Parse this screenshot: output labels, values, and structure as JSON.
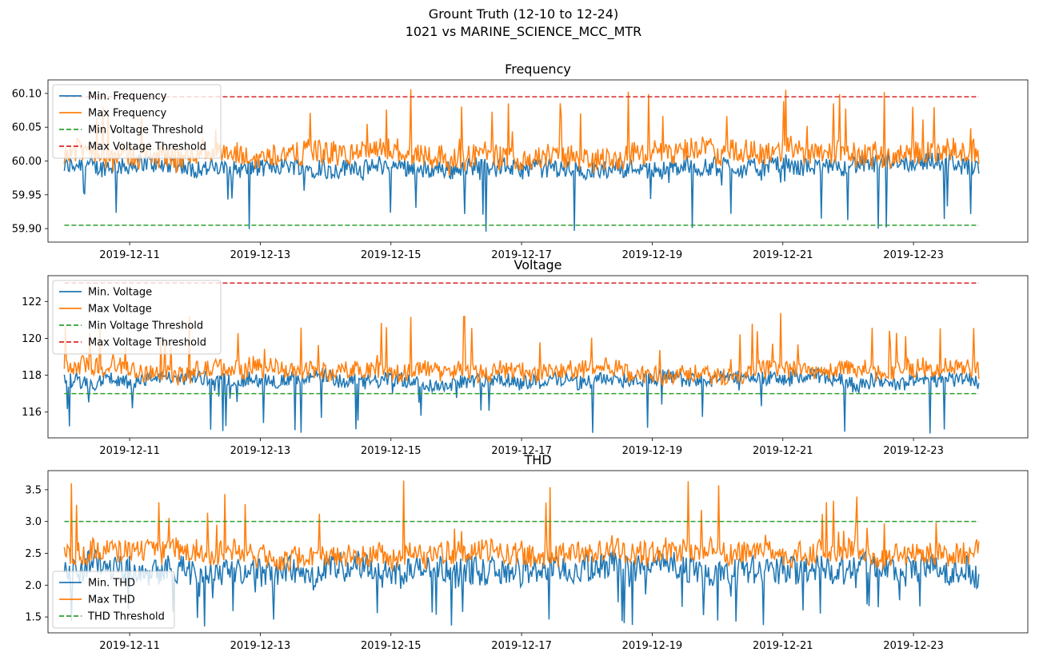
{
  "figure": {
    "suptitle_line1": "Grount Truth (12-10 to 12-24)",
    "suptitle_line2": "1021 vs MARINE_SCIENCE_MCC_MTR"
  },
  "colors": {
    "blue": "#1f77b4",
    "orange": "#ff7f0e",
    "green": "#2ca02c",
    "red": "#d62728"
  },
  "chart_data": [
    {
      "type": "line",
      "title": "Frequency",
      "xlabel": "",
      "ylabel": "",
      "x_range": [
        "2019-12-10",
        "2019-12-24"
      ],
      "xlim": [
        "2019-12-09T18:00",
        "2019-12-24T18:00"
      ],
      "ylim": [
        59.88,
        60.12
      ],
      "x_ticks": [
        "2019-12-11",
        "2019-12-13",
        "2019-12-15",
        "2019-12-17",
        "2019-12-19",
        "2019-12-21",
        "2019-12-23"
      ],
      "y_ticks": [
        59.9,
        59.95,
        60.0,
        60.05,
        60.1
      ],
      "y_tick_labels": [
        "59.90",
        "59.95",
        "60.00",
        "60.05",
        "60.10"
      ],
      "grid": false,
      "legend_position": "upper-left",
      "series": [
        {
          "name": "Min. Frequency",
          "style": "solid",
          "color": "blue",
          "typical_low": 59.975,
          "typical_high": 60.005,
          "extreme_low": 59.89
        },
        {
          "name": "Max Frequency",
          "style": "solid",
          "color": "orange",
          "typical_low": 59.99,
          "typical_high": 60.03,
          "extreme_high": 60.11
        },
        {
          "name": "Min Voltage Threshold",
          "style": "dashed",
          "color": "green",
          "value": 59.905
        },
        {
          "name": "Max Voltage Threshold",
          "style": "dashed",
          "color": "red",
          "value": 60.095
        }
      ]
    },
    {
      "type": "line",
      "title": "Voltage",
      "xlabel": "",
      "ylabel": "",
      "x_range": [
        "2019-12-10",
        "2019-12-24"
      ],
      "xlim": [
        "2019-12-09T18:00",
        "2019-12-24T18:00"
      ],
      "ylim": [
        114.6,
        123.4
      ],
      "x_ticks": [
        "2019-12-11",
        "2019-12-13",
        "2019-12-15",
        "2019-12-17",
        "2019-12-19",
        "2019-12-21",
        "2019-12-23"
      ],
      "y_ticks": [
        116,
        118,
        120,
        122
      ],
      "y_tick_labels": [
        "116",
        "118",
        "120",
        "122"
      ],
      "grid": false,
      "legend_position": "upper-left",
      "series": [
        {
          "name": "Min. Voltage",
          "style": "solid",
          "color": "blue",
          "typical_low": 117.3,
          "typical_high": 118.2,
          "extreme_low": 114.8
        },
        {
          "name": "Max Voltage",
          "style": "solid",
          "color": "orange",
          "typical_low": 117.7,
          "typical_high": 118.8,
          "extreme_high": 121.4
        },
        {
          "name": "Min Voltage Threshold",
          "style": "dashed",
          "color": "green",
          "value": 117.0
        },
        {
          "name": "Max Voltage Threshold",
          "style": "dashed",
          "color": "red",
          "value": 123.0
        }
      ]
    },
    {
      "type": "line",
      "title": "THD",
      "xlabel": "",
      "ylabel": "",
      "x_range": [
        "2019-12-10",
        "2019-12-24"
      ],
      "xlim": [
        "2019-12-09T18:00",
        "2019-12-24T18:00"
      ],
      "ylim": [
        1.25,
        3.8
      ],
      "x_ticks": [
        "2019-12-11",
        "2019-12-13",
        "2019-12-15",
        "2019-12-17",
        "2019-12-19",
        "2019-12-21",
        "2019-12-23"
      ],
      "y_ticks": [
        1.5,
        2.0,
        2.5,
        3.0,
        3.5
      ],
      "y_tick_labels": [
        "1.5",
        "2.0",
        "2.5",
        "3.0",
        "3.5"
      ],
      "grid": false,
      "legend_position": "lower-left",
      "series": [
        {
          "name": "Min. THD",
          "style": "solid",
          "color": "blue",
          "typical_low": 2.0,
          "typical_high": 2.5,
          "extreme_low": 1.3
        },
        {
          "name": "Max THD",
          "style": "solid",
          "color": "orange",
          "typical_low": 2.3,
          "typical_high": 2.7,
          "extreme_high": 3.7
        },
        {
          "name": "THD Threshold",
          "style": "dashed",
          "color": "green",
          "value": 3.0
        }
      ]
    }
  ]
}
